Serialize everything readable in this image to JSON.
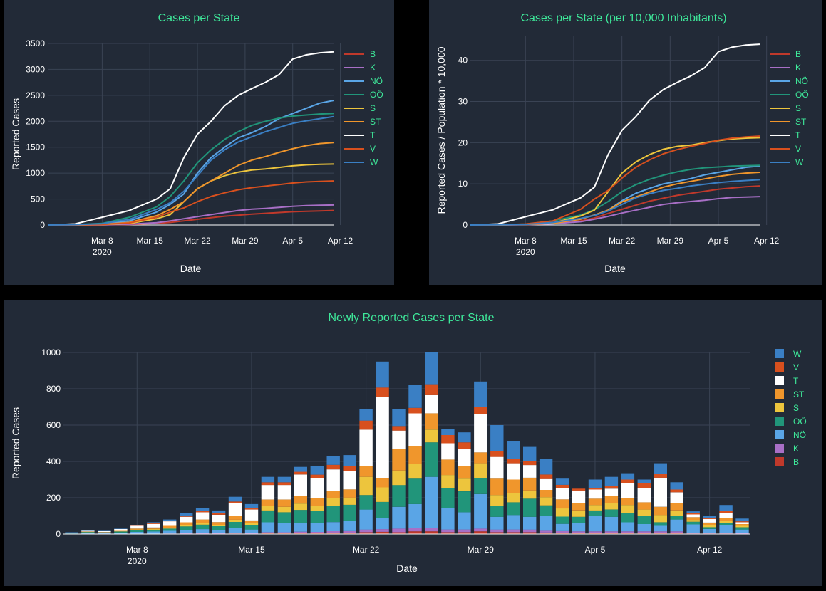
{
  "colors": {
    "B": "#c0392b",
    "K": "#a86fc6",
    "NÖ": "#5aa5e6",
    "OÖ": "#21957a",
    "S": "#edc53d",
    "ST": "#f0962c",
    "T": "#ffffff",
    "V": "#d8501e",
    "W": "#3a7fc4"
  },
  "chart_data": [
    {
      "type": "line",
      "title": "Cases per State",
      "xlabel": "Date",
      "ylabel": "Reported Cases",
      "ylim": [
        0,
        3500
      ],
      "yticks": [
        "0",
        "500",
        "1000",
        "1500",
        "2000",
        "2500",
        "3000",
        "3500"
      ],
      "xticks": [
        {
          "label": "Mar 8",
          "sub": "2020",
          "day": 8
        },
        {
          "label": "Mar 15",
          "day": 15
        },
        {
          "label": "Mar 22",
          "day": 22
        },
        {
          "label": "Mar 29",
          "day": 29
        },
        {
          "label": "Apr 5",
          "day": 36
        },
        {
          "label": "Apr 12",
          "day": 43
        }
      ],
      "x_start": "2020-03-04",
      "x": [
        "2020-03-04",
        "2020-03-08",
        "2020-03-12",
        "2020-03-16",
        "2020-03-20",
        "2020-03-22",
        "2020-03-24",
        "2020-03-26",
        "2020-03-28",
        "2020-03-30",
        "2020-04-01",
        "2020-04-03",
        "2020-04-05",
        "2020-04-07",
        "2020-04-09",
        "2020-04-11",
        "2020-04-13",
        "2020-04-15"
      ],
      "legend": [
        "B",
        "K",
        "NÖ",
        "OÖ",
        "S",
        "ST",
        "T",
        "V",
        "W"
      ],
      "series": [
        {
          "name": "B",
          "values": [
            0,
            1,
            3,
            10,
            30,
            50,
            80,
            110,
            140,
            170,
            190,
            210,
            225,
            240,
            255,
            265,
            272,
            280
          ]
        },
        {
          "name": "K",
          "values": [
            0,
            1,
            4,
            15,
            45,
            80,
            120,
            160,
            200,
            240,
            280,
            305,
            320,
            340,
            360,
            375,
            382,
            385
          ]
        },
        {
          "name": "NÖ",
          "values": [
            0,
            5,
            20,
            80,
            250,
            400,
            600,
            1000,
            1300,
            1500,
            1680,
            1780,
            1900,
            2050,
            2150,
            2250,
            2350,
            2400
          ]
        },
        {
          "name": "OÖ",
          "values": [
            0,
            8,
            30,
            150,
            350,
            550,
            850,
            1200,
            1450,
            1650,
            1800,
            1920,
            2000,
            2060,
            2100,
            2120,
            2140,
            2150
          ]
        },
        {
          "name": "S",
          "values": [
            0,
            2,
            8,
            30,
            120,
            200,
            450,
            700,
            850,
            950,
            1020,
            1060,
            1080,
            1110,
            1140,
            1160,
            1170,
            1175
          ]
        },
        {
          "name": "ST",
          "values": [
            0,
            3,
            12,
            50,
            180,
            300,
            450,
            700,
            850,
            1000,
            1150,
            1250,
            1320,
            1400,
            1470,
            1530,
            1570,
            1590
          ]
        },
        {
          "name": "T",
          "values": [
            0,
            20,
            150,
            280,
            500,
            700,
            1300,
            1750,
            2000,
            2300,
            2500,
            2630,
            2750,
            2900,
            3200,
            3280,
            3320,
            3340
          ]
        },
        {
          "name": "V",
          "values": [
            0,
            2,
            10,
            40,
            150,
            250,
            330,
            450,
            550,
            620,
            680,
            720,
            750,
            780,
            810,
            830,
            840,
            850
          ]
        },
        {
          "name": "W",
          "values": [
            0,
            6,
            25,
            110,
            300,
            430,
            650,
            950,
            1250,
            1450,
            1600,
            1700,
            1800,
            1880,
            1960,
            2010,
            2050,
            2090
          ]
        }
      ]
    },
    {
      "type": "line",
      "title": "Cases per State (per 10,000 Inhabitants)",
      "xlabel": "Date",
      "ylabel": "Reported Cases / Population * 10,000",
      "ylim": [
        0,
        46
      ],
      "yticks": [
        "0",
        "10",
        "20",
        "30",
        "40"
      ],
      "ytick_values": [
        0,
        10,
        20,
        30,
        40
      ],
      "xticks": [
        {
          "label": "Mar 8",
          "sub": "2020",
          "day": 8
        },
        {
          "label": "Mar 15",
          "day": 15
        },
        {
          "label": "Mar 22",
          "day": 22
        },
        {
          "label": "Mar 29",
          "day": 29
        },
        {
          "label": "Apr 5",
          "day": 36
        },
        {
          "label": "Apr 12",
          "day": 43
        }
      ],
      "x_start": "2020-03-04",
      "x": [
        "2020-03-04",
        "2020-03-08",
        "2020-03-12",
        "2020-03-16",
        "2020-03-20",
        "2020-03-22",
        "2020-03-24",
        "2020-03-26",
        "2020-03-28",
        "2020-03-30",
        "2020-04-01",
        "2020-04-03",
        "2020-04-05",
        "2020-04-07",
        "2020-04-09",
        "2020-04-11",
        "2020-04-13",
        "2020-04-15"
      ],
      "legend": [
        "B",
        "K",
        "NÖ",
        "OÖ",
        "S",
        "ST",
        "T",
        "V",
        "W"
      ],
      "series": [
        {
          "name": "B",
          "values": [
            0,
            0.02,
            0.1,
            0.4,
            1.0,
            1.7,
            2.8,
            3.8,
            4.8,
            5.8,
            6.5,
            7.2,
            7.7,
            8.2,
            8.7,
            9.0,
            9.3,
            9.5
          ]
        },
        {
          "name": "K",
          "values": [
            0,
            0.01,
            0.07,
            0.3,
            0.8,
            1.4,
            2.1,
            2.9,
            3.6,
            4.3,
            5.0,
            5.4,
            5.7,
            6.0,
            6.4,
            6.7,
            6.8,
            6.9
          ]
        },
        {
          "name": "NÖ",
          "values": [
            0,
            0.03,
            0.12,
            0.5,
            1.5,
            2.4,
            3.6,
            5.9,
            7.7,
            8.9,
            10.0,
            10.6,
            11.3,
            12.2,
            12.8,
            13.4,
            14.0,
            14.3
          ]
        },
        {
          "name": "OÖ",
          "values": [
            0,
            0.05,
            0.2,
            1.0,
            2.4,
            3.7,
            5.7,
            8.1,
            9.8,
            11.1,
            12.1,
            12.9,
            13.5,
            13.9,
            14.1,
            14.3,
            14.4,
            14.5
          ]
        },
        {
          "name": "S",
          "values": [
            0,
            0.04,
            0.15,
            0.5,
            2.2,
            3.6,
            8.1,
            12.6,
            15.3,
            17.1,
            18.4,
            19.1,
            19.4,
            20.0,
            20.5,
            20.9,
            21.1,
            21.2
          ]
        },
        {
          "name": "ST",
          "values": [
            0,
            0.02,
            0.1,
            0.4,
            1.4,
            2.4,
            3.6,
            5.6,
            6.8,
            8.0,
            9.2,
            10.0,
            10.6,
            11.2,
            11.8,
            12.3,
            12.6,
            12.8
          ]
        },
        {
          "name": "T",
          "values": [
            0,
            0.26,
            2.0,
            3.7,
            6.6,
            9.2,
            17.1,
            23.0,
            26.3,
            30.3,
            32.9,
            34.6,
            36.2,
            38.2,
            42.1,
            43.2,
            43.7,
            43.9
          ]
        },
        {
          "name": "V",
          "values": [
            0,
            0.05,
            0.25,
            1.0,
            3.8,
            6.3,
            8.4,
            11.4,
            14.0,
            15.8,
            17.3,
            18.3,
            19.1,
            19.8,
            20.6,
            21.1,
            21.4,
            21.6
          ]
        },
        {
          "name": "W",
          "values": [
            0,
            0.03,
            0.13,
            0.6,
            1.6,
            2.3,
            3.4,
            5.0,
            6.6,
            7.6,
            8.4,
            8.9,
            9.5,
            9.9,
            10.3,
            10.6,
            10.8,
            11.0
          ]
        }
      ]
    },
    {
      "type": "bar",
      "stacked": true,
      "title": "Newly Reported Cases per State",
      "xlabel": "Date",
      "ylabel": "Reported Cases",
      "ylim": [
        0,
        1000
      ],
      "yticks": [
        "0",
        "200",
        "400",
        "600",
        "800",
        "1000"
      ],
      "xticks": [
        {
          "label": "Mar 8",
          "sub": "2020",
          "day": 8
        },
        {
          "label": "Mar 15",
          "day": 15
        },
        {
          "label": "Mar 22",
          "day": 22
        },
        {
          "label": "Mar 29",
          "day": 29
        },
        {
          "label": "Apr 5",
          "day": 36
        },
        {
          "label": "Apr 12",
          "day": 43
        }
      ],
      "x_start": "2020-03-04",
      "legend": [
        "W",
        "V",
        "T",
        "ST",
        "S",
        "OÖ",
        "NÖ",
        "K",
        "B"
      ],
      "stack_order": [
        "B",
        "K",
        "NÖ",
        "OÖ",
        "S",
        "ST",
        "T",
        "V",
        "W"
      ],
      "totals": [
        10,
        20,
        18,
        30,
        50,
        65,
        80,
        115,
        145,
        130,
        205,
        165,
        315,
        315,
        370,
        375,
        430,
        435,
        690,
        950,
        690,
        840,
        1000,
        580,
        560,
        840,
        600,
        510,
        490,
        415,
        285,
        245,
        300,
        315,
        335,
        290,
        350,
        285,
        125,
        100,
        160,
        85
      ],
      "rows": [
        [
          0,
          0,
          3,
          2,
          0,
          1,
          2,
          0,
          2
        ],
        [
          0,
          0,
          6,
          5,
          1,
          2,
          4,
          0,
          2
        ],
        [
          0,
          0,
          5,
          4,
          0,
          2,
          5,
          0,
          2
        ],
        [
          0,
          0,
          8,
          6,
          1,
          3,
          10,
          0,
          2
        ],
        [
          1,
          1,
          10,
          10,
          3,
          5,
          15,
          2,
          3
        ],
        [
          1,
          1,
          12,
          10,
          4,
          8,
          20,
          3,
          6
        ],
        [
          1,
          2,
          15,
          12,
          5,
          10,
          25,
          4,
          6
        ],
        [
          2,
          2,
          18,
          20,
          8,
          15,
          30,
          6,
          14
        ],
        [
          2,
          3,
          22,
          25,
          10,
          18,
          40,
          8,
          17
        ],
        [
          2,
          3,
          18,
          20,
          8,
          15,
          40,
          8,
          16
        ],
        [
          3,
          4,
          25,
          35,
          12,
          20,
          70,
          10,
          26
        ],
        [
          2,
          3,
          20,
          25,
          10,
          15,
          60,
          8,
          22
        ],
        [
          4,
          6,
          55,
          65,
          25,
          35,
          80,
          15,
          30
        ],
        [
          4,
          6,
          50,
          60,
          30,
          40,
          80,
          15,
          30
        ],
        [
          5,
          8,
          50,
          70,
          35,
          40,
          120,
          15,
          27
        ],
        [
          5,
          7,
          50,
          65,
          30,
          40,
          110,
          20,
          48
        ],
        [
          6,
          10,
          50,
          90,
          40,
          40,
          120,
          25,
          49
        ],
        [
          6,
          10,
          55,
          90,
          40,
          45,
          100,
          30,
          59
        ],
        [
          10,
          15,
          110,
          80,
          100,
          60,
          200,
          50,
          65
        ],
        [
          12,
          15,
          60,
          90,
          80,
          50,
          450,
          50,
          143
        ],
        [
          10,
          20,
          120,
          120,
          80,
          120,
          100,
          25,
          95
        ],
        [
          15,
          20,
          130,
          140,
          80,
          100,
          180,
          30,
          125
        ],
        [
          15,
          20,
          280,
          190,
          70,
          90,
          100,
          60,
          175
        ],
        [
          10,
          15,
          120,
          110,
          70,
          85,
          90,
          45,
          35
        ],
        [
          10,
          15,
          95,
          115,
          70,
          70,
          95,
          35,
          55
        ],
        [
          15,
          15,
          190,
          90,
          80,
          60,
          210,
          40,
          140
        ],
        [
          10,
          15,
          70,
          60,
          60,
          90,
          120,
          30,
          145
        ],
        [
          10,
          15,
          80,
          70,
          50,
          75,
          90,
          25,
          95
        ],
        [
          10,
          15,
          70,
          100,
          45,
          70,
          70,
          20,
          80
        ],
        [
          8,
          10,
          80,
          60,
          45,
          40,
          60,
          25,
          87
        ],
        [
          6,
          10,
          40,
          40,
          45,
          50,
          60,
          20,
          34
        ],
        [
          5,
          10,
          45,
          35,
          35,
          40,
          70,
          10,
          0
        ],
        [
          5,
          10,
          85,
          30,
          30,
          35,
          50,
          10,
          45
        ],
        [
          5,
          10,
          80,
          40,
          35,
          40,
          40,
          15,
          50
        ],
        [
          5,
          10,
          50,
          50,
          45,
          40,
          80,
          20,
          35
        ],
        [
          5,
          10,
          40,
          45,
          35,
          40,
          80,
          25,
          20
        ],
        [
          5,
          10,
          30,
          20,
          40,
          45,
          160,
          20,
          60
        ],
        [
          5,
          10,
          65,
          20,
          30,
          40,
          60,
          15,
          40
        ],
        [
          3,
          5,
          45,
          15,
          10,
          15,
          15,
          7,
          10
        ],
        [
          3,
          5,
          20,
          10,
          10,
          15,
          20,
          5,
          12
        ],
        [
          3,
          5,
          40,
          15,
          10,
          15,
          30,
          10,
          32
        ],
        [
          2,
          3,
          20,
          12,
          8,
          10,
          10,
          5,
          15
        ]
      ]
    }
  ]
}
